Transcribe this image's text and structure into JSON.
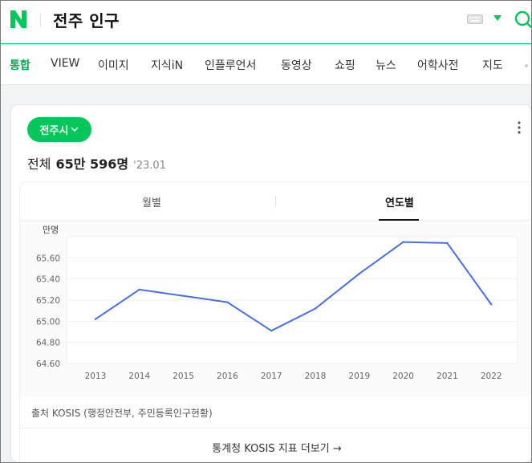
{
  "header": {
    "query": "전주 인구"
  },
  "tabs": [
    {
      "label": "통합",
      "active": true
    },
    {
      "label": "VIEW"
    },
    {
      "label": "이미지"
    },
    {
      "label": "지식iN"
    },
    {
      "label": "인플루언서"
    },
    {
      "label": "동영상"
    },
    {
      "label": "쇼핑"
    },
    {
      "label": "뉴스"
    },
    {
      "label": "어학사전"
    },
    {
      "label": "지도"
    }
  ],
  "card": {
    "city_button": "전주시",
    "summary_label": "전체",
    "summary_value": "65만 596명",
    "summary_date": "'23.01",
    "segments": [
      "월별",
      "연도별"
    ],
    "active_segment": "연도별",
    "source": "출처 KOSIS (행정안전부, 주민등록인구현황)",
    "more_link": "통계청 KOSIS 지표 더보기 →"
  },
  "chart_data": {
    "type": "line",
    "ylabel": "만명",
    "ylim": [
      64.6,
      65.8
    ],
    "yticks": [
      "65.60",
      "65.40",
      "65.20",
      "65.00",
      "64.80",
      "64.60"
    ],
    "categories": [
      "2013",
      "2014",
      "2015",
      "2016",
      "2017",
      "2018",
      "2019",
      "2020",
      "2021",
      "2022"
    ],
    "series": [
      {
        "values": [
          65.02,
          65.3,
          65.24,
          65.18,
          64.91,
          65.12,
          65.45,
          65.75,
          65.74,
          65.16
        ]
      }
    ],
    "color": "#4a6fe3"
  },
  "colors": {
    "brand": "#03c75a",
    "line": "#4a6fe3"
  }
}
